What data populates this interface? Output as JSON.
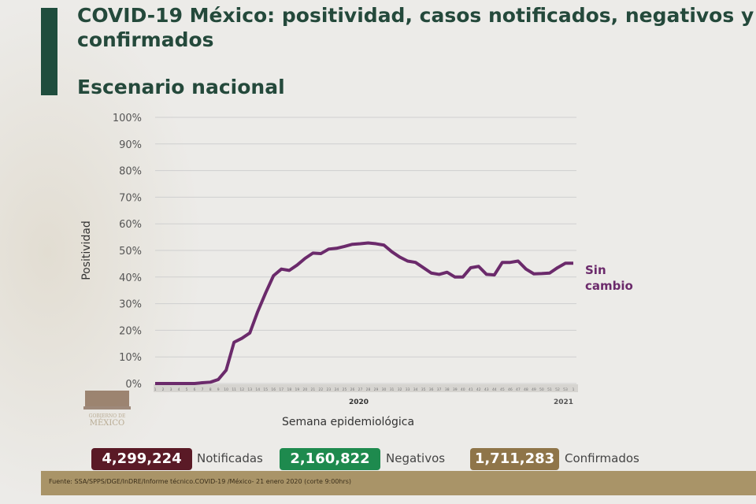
{
  "header": {
    "title_line1": "COVID-19 México: positividad, casos notificados, negativos y",
    "title_line2": "confirmados",
    "subtitle": "Escenario nacional"
  },
  "chart_data": {
    "type": "line",
    "ylabel": "Positividad",
    "xlabel": "Semana epidemiológica",
    "ylim": [
      0,
      100
    ],
    "yticks": [
      "0%",
      "10%",
      "20%",
      "30%",
      "40%",
      "50%",
      "60%",
      "70%",
      "80%",
      "90%",
      "100%"
    ],
    "x": [
      "1",
      "2",
      "3",
      "4",
      "5",
      "6",
      "7",
      "8",
      "9",
      "10",
      "11",
      "12",
      "13",
      "14",
      "15",
      "16",
      "17",
      "18",
      "19",
      "20",
      "21",
      "22",
      "23",
      "24",
      "25",
      "26",
      "27",
      "28",
      "29",
      "30",
      "31",
      "32",
      "33",
      "34",
      "35",
      "36",
      "37",
      "38",
      "39",
      "40",
      "41",
      "42",
      "43",
      "44",
      "45",
      "46",
      "47",
      "48",
      "49",
      "50",
      "51",
      "52",
      "53",
      "1"
    ],
    "year_labels": {
      "y2020": "2020",
      "y2021": "2021"
    },
    "series": [
      {
        "values": [
          0,
          0,
          0,
          0,
          0,
          0,
          0.3,
          0.5,
          1.5,
          5,
          15.5,
          17,
          19,
          27,
          34,
          40.5,
          43,
          42.5,
          44.5,
          47,
          49,
          48.8,
          50.5,
          50.8,
          51.5,
          52.3,
          52.5,
          52.8,
          52.5,
          52,
          49.5,
          47.5,
          46,
          45.5,
          43.5,
          41.5,
          41,
          41.8,
          40,
          40,
          43.5,
          44,
          41,
          40.8,
          45.5,
          45.5,
          46,
          43,
          41.2,
          41.3,
          41.5,
          43.5,
          45.2,
          45.2
        ]
      }
    ],
    "annotation": [
      "Sin",
      "cambio"
    ],
    "grid": true,
    "line_color": "#6b2a6b"
  },
  "stats": [
    {
      "value": "4,299,224",
      "label": "Notificadas",
      "color": "#5a1a26"
    },
    {
      "value": "2,160,822",
      "label": "Negativos",
      "color": "#1e8a4e"
    },
    {
      "value": "1,711,283",
      "label": "Confirmados",
      "color": "#8f7549"
    }
  ],
  "footer": {
    "source": "Fuente: SSA/SPPS/DGE/InDRE/Informe técnico.COVID-19 /México- 21 enero 2020 (corte 9:00hrs)"
  },
  "logo": {
    "text": "GOBIERNO DE MÉXICO"
  }
}
